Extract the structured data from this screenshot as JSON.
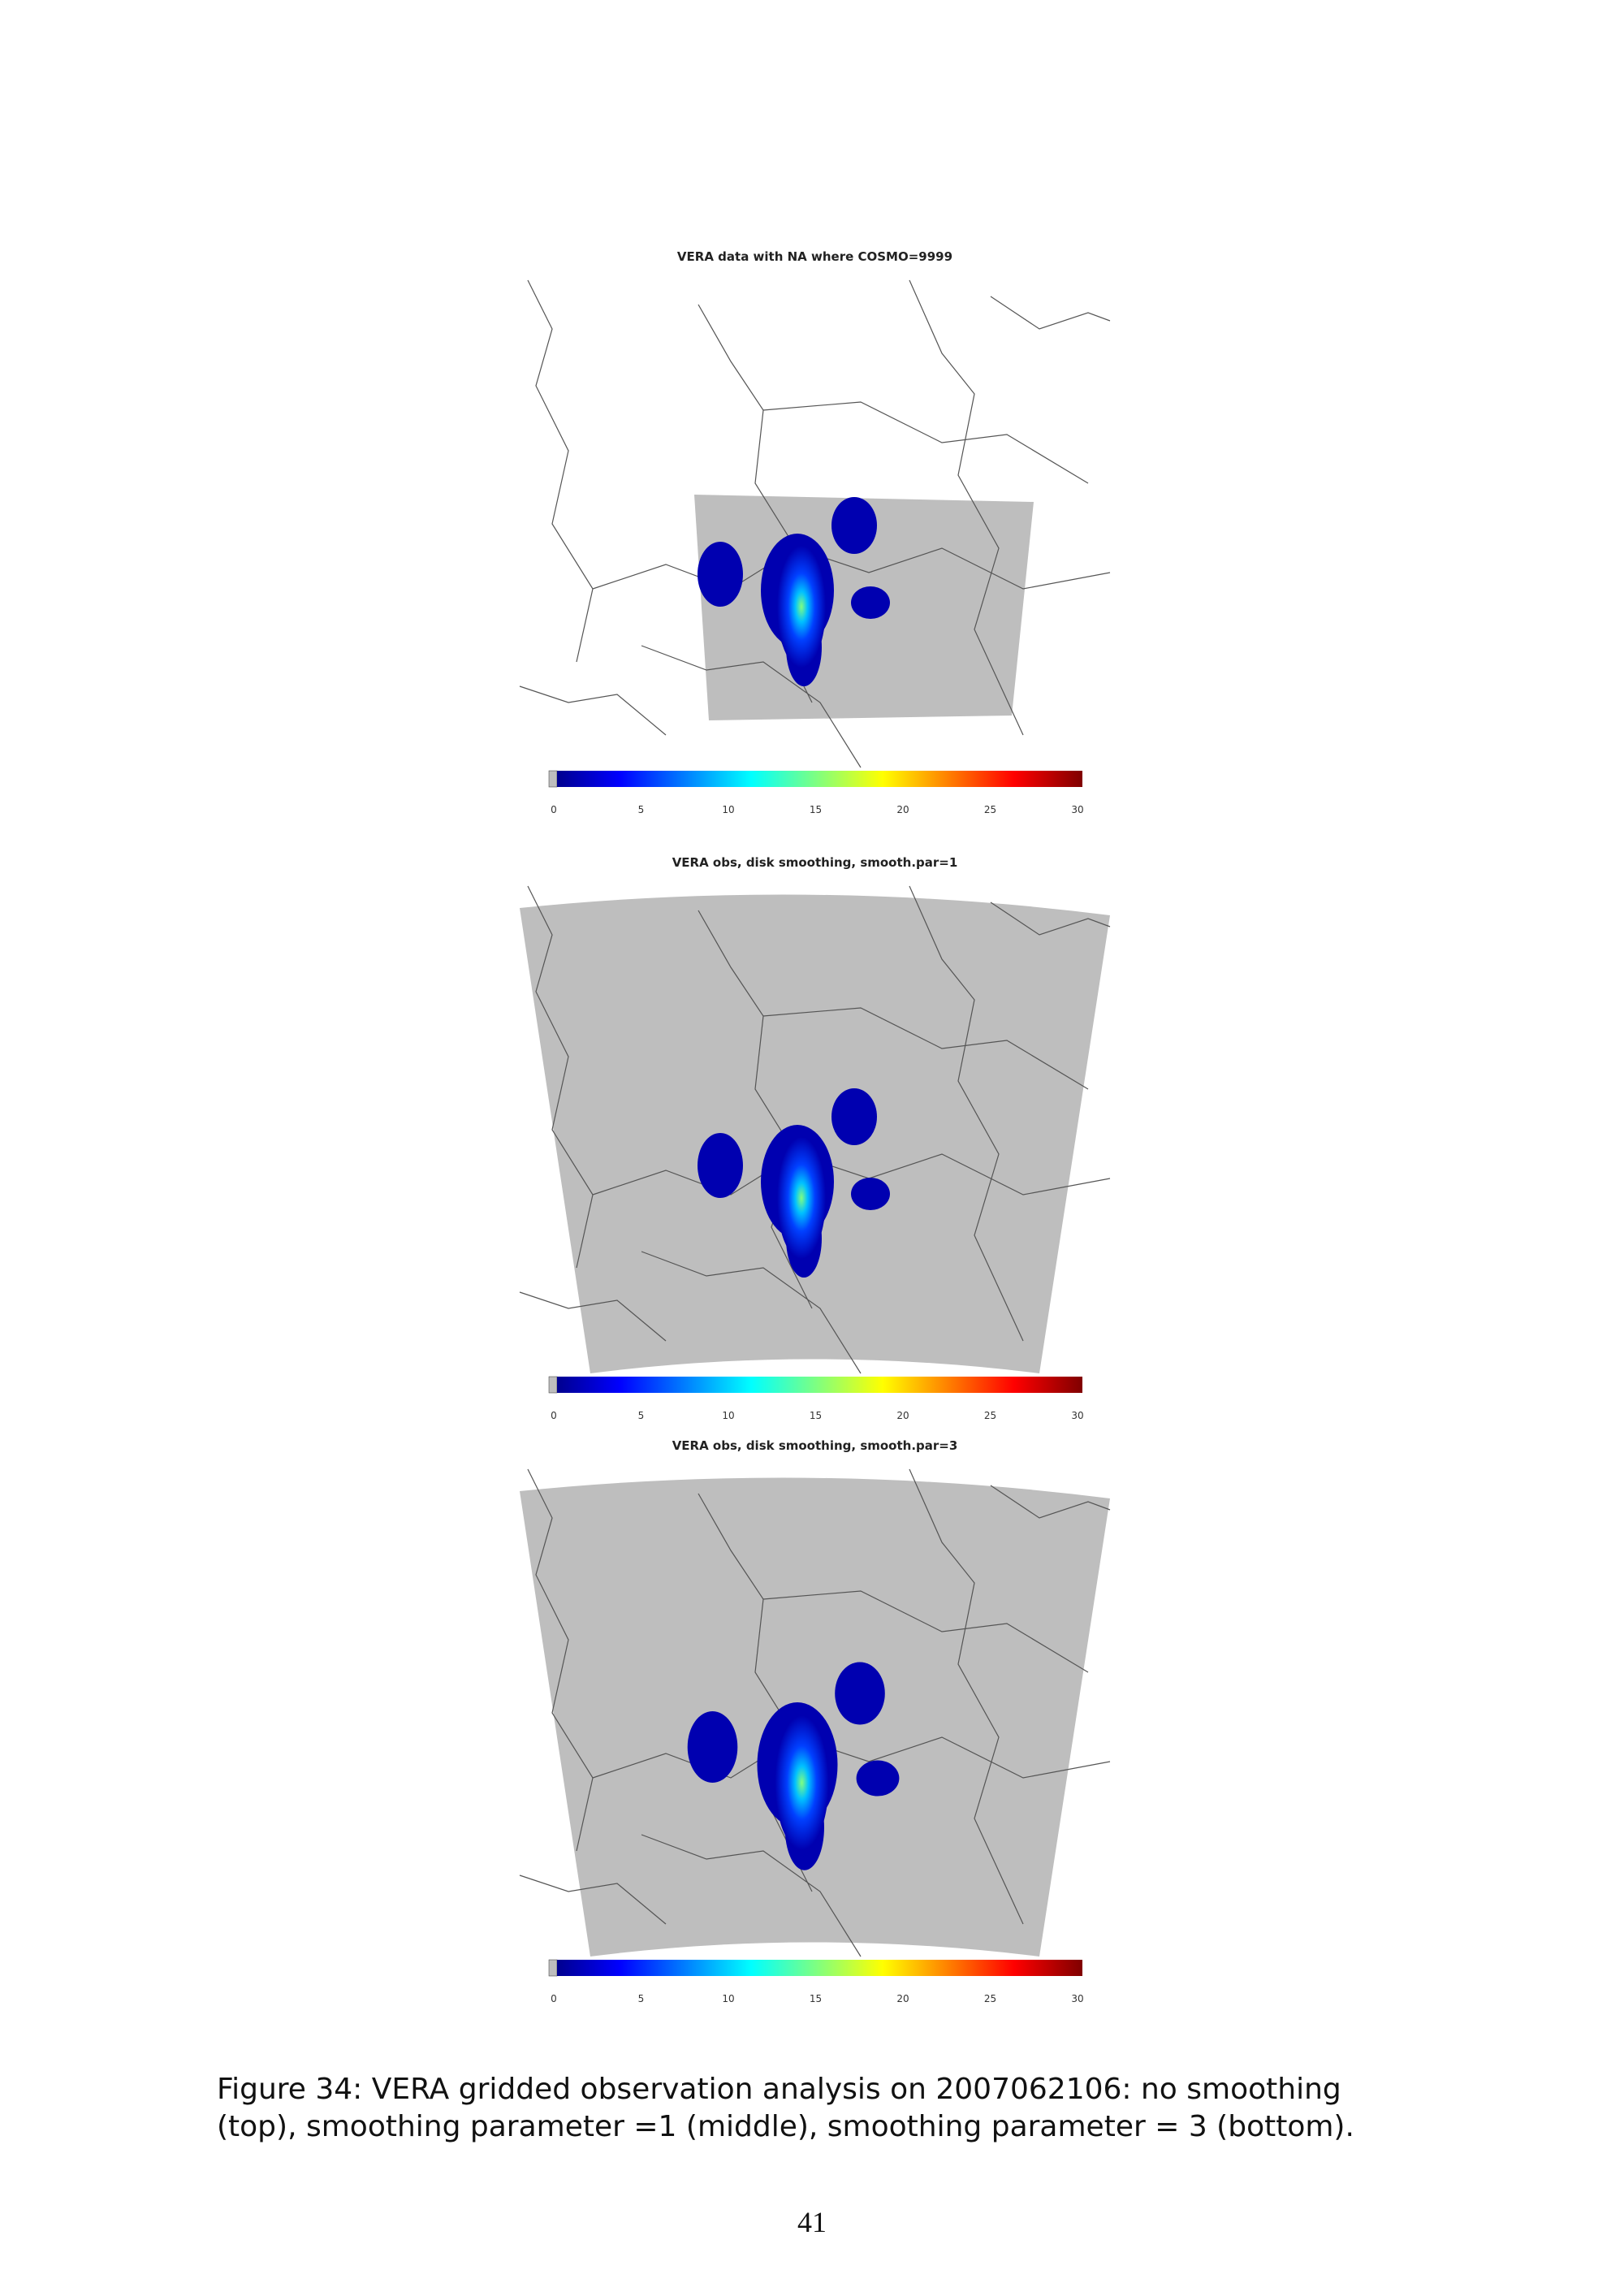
{
  "figure": {
    "panels": [
      {
        "title": "VERA data with NA where COSMO=9999",
        "colorbar_ticks": [
          0,
          5,
          10,
          15,
          20,
          25,
          30
        ]
      },
      {
        "title": "VERA obs, disk smoothing, smooth.par=1",
        "colorbar_ticks": [
          0,
          5,
          10,
          15,
          20,
          25,
          30
        ]
      },
      {
        "title": "VERA obs, disk smoothing, smooth.par=3",
        "colorbar_ticks": [
          0,
          5,
          10,
          15,
          20,
          25,
          30
        ]
      }
    ],
    "caption": "Figure 34: VERA gridded observation analysis on 2007062106: no smoothing (top), smoothing parameter =1 (middle), smoothing parameter = 3 (bottom)."
  },
  "page_number": "41"
}
